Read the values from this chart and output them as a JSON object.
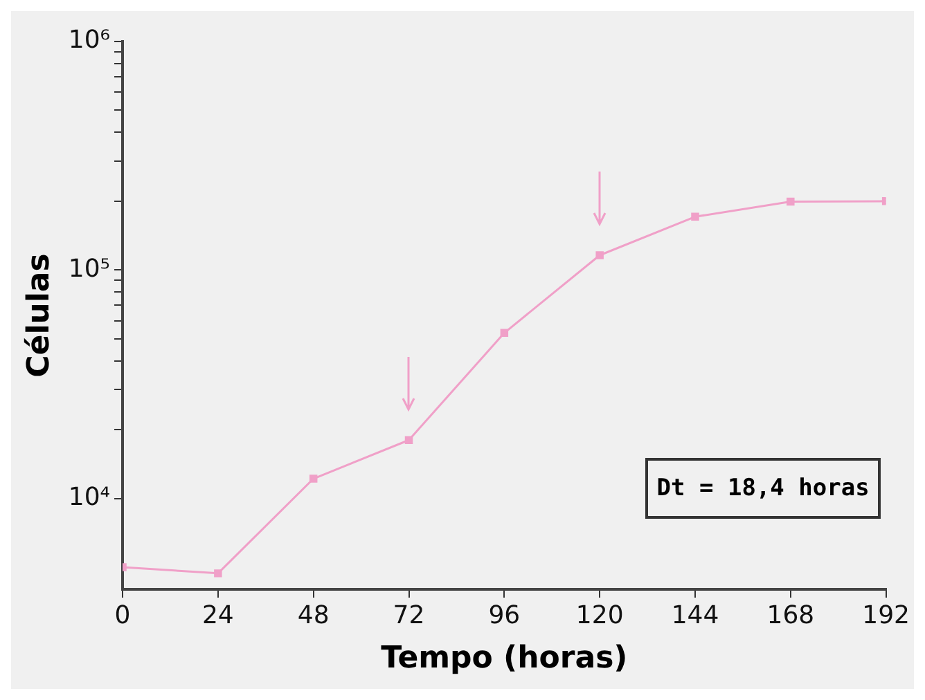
{
  "chart_data": {
    "type": "line",
    "xlabel": "Tempo (horas)",
    "ylabel": "Células",
    "x": [
      0,
      24,
      48,
      72,
      96,
      120,
      144,
      168,
      192
    ],
    "series": [
      {
        "color": "#f0a0c8",
        "values": [
          5000,
          4700,
          12200,
          18000,
          53000,
          116000,
          171000,
          199000,
          200000
        ]
      }
    ],
    "log": "y",
    "xlim": [
      0,
      192
    ],
    "xticks": [
      0,
      24,
      48,
      72,
      96,
      120,
      144,
      168,
      192
    ],
    "ylim": [
      4000,
      1000000
    ],
    "yticks": [
      {
        "value": 10000,
        "label": "10⁴"
      },
      {
        "value": 20000,
        "label": null
      },
      {
        "value": 30000,
        "label": null
      },
      {
        "value": 40000,
        "label": null
      },
      {
        "value": 50000,
        "label": null
      },
      {
        "value": 60000,
        "label": null
      },
      {
        "value": 70000,
        "label": null
      },
      {
        "value": 80000,
        "label": null
      },
      {
        "value": 90000,
        "label": null
      },
      {
        "value": 100000,
        "label": "10⁵"
      },
      {
        "value": 200000,
        "label": null
      },
      {
        "value": 300000,
        "label": null
      },
      {
        "value": 400000,
        "label": null
      },
      {
        "value": 500000,
        "label": null
      },
      {
        "value": 600000,
        "label": null
      },
      {
        "value": 700000,
        "label": null
      },
      {
        "value": 800000,
        "label": null
      },
      {
        "value": 900000,
        "label": null
      },
      {
        "value": 1000000,
        "label": "10⁶"
      }
    ],
    "marker": "square",
    "line_style": "solid",
    "legend": false,
    "grid": false,
    "annotations": [
      "Dt = 18,4 horas"
    ]
  }
}
